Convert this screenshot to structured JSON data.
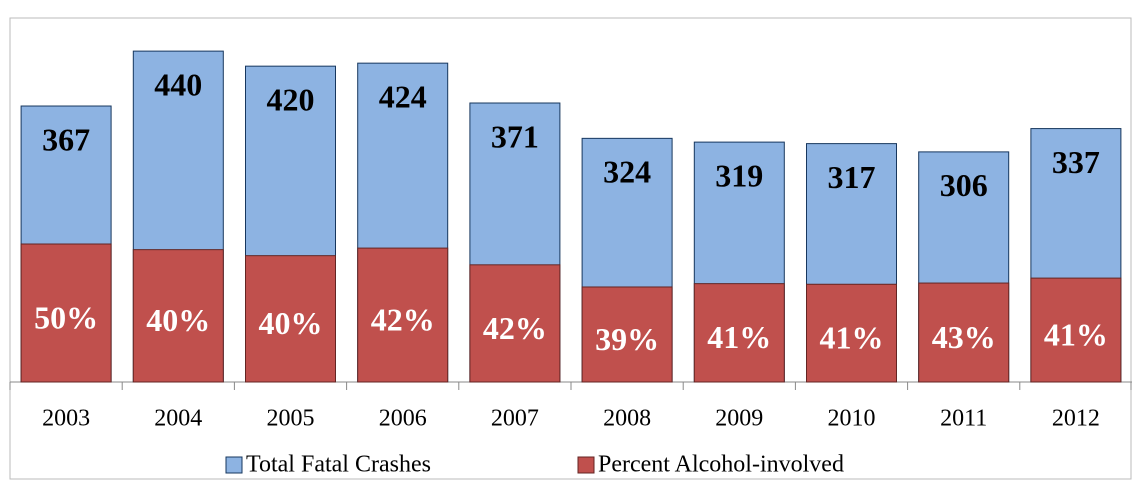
{
  "chart_data": {
    "type": "bar",
    "categories": [
      "2003",
      "2004",
      "2005",
      "2006",
      "2007",
      "2008",
      "2009",
      "2010",
      "2011",
      "2012"
    ],
    "series": [
      {
        "name": "Total Fatal Crashes",
        "color": "#8db3e2",
        "values": [
          367,
          440,
          420,
          424,
          371,
          324,
          319,
          317,
          306,
          337
        ]
      },
      {
        "name": "Percent Alcohol-involved",
        "color": "#c0504d",
        "values": [
          50,
          40,
          40,
          42,
          42,
          39,
          41,
          41,
          43,
          41
        ],
        "value_labels": [
          "50%",
          "40%",
          "40%",
          "42%",
          "42%",
          "39%",
          "41%",
          "41%",
          "43%",
          "41%"
        ]
      }
    ],
    "ylim": [
      0,
      500
    ]
  }
}
